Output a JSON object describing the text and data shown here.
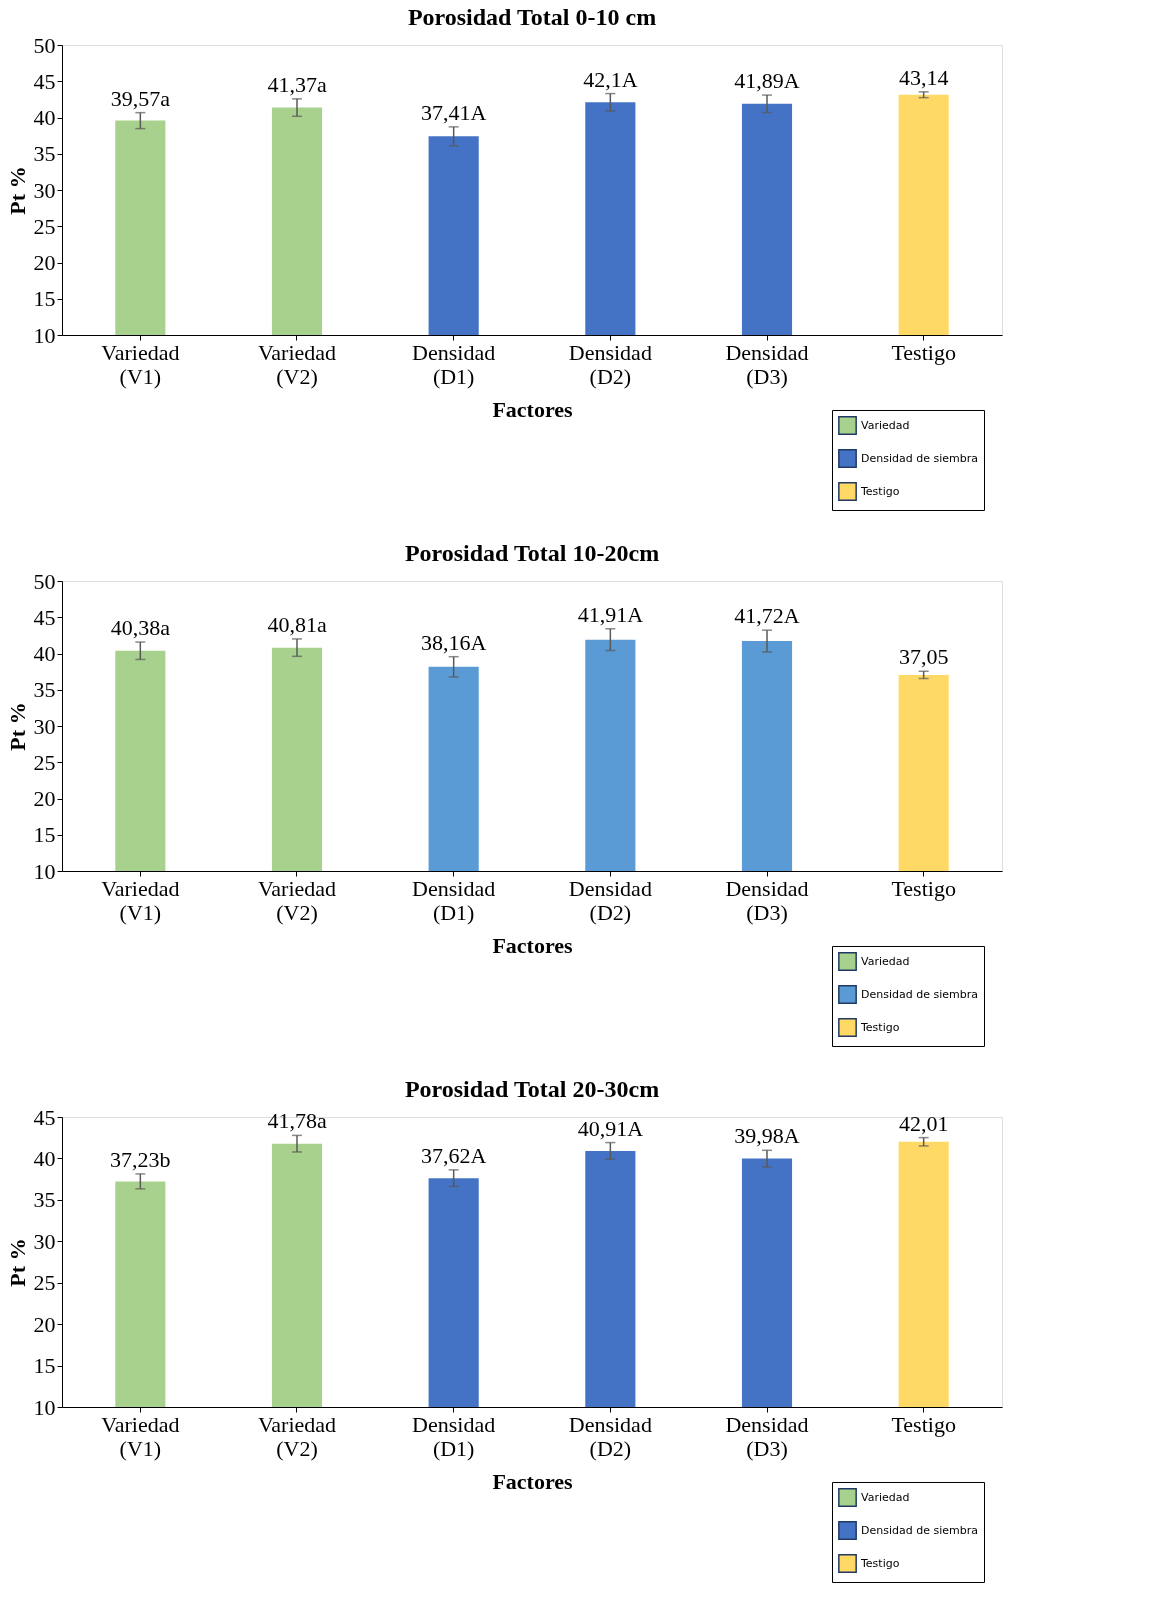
{
  "chart_data": [
    {
      "type": "bar",
      "title": "Porosidad Total   0-10 cm",
      "xlabel": "Factores",
      "ylabel": "Pt %",
      "categories": [
        "Variedad\n(V1)",
        "Variedad\n(V2)",
        "Densidad\n(D1)",
        "Densidad\n(D2)",
        "Densidad\n(D3)",
        "Testigo"
      ],
      "ylim": [
        10,
        50
      ],
      "yticks": [
        10,
        15,
        20,
        25,
        30,
        35,
        40,
        45,
        50
      ],
      "grid": false,
      "legend": "bottom right",
      "series": [
        {
          "name": "Variedad",
          "color": "#a9d18e",
          "values": [
            39.57,
            41.37,
            null,
            null,
            null,
            null
          ],
          "errors": [
            1.1,
            1.2,
            null,
            null,
            null,
            null
          ],
          "value_labels": [
            "39,57a",
            "41,37a",
            null,
            null,
            null,
            null
          ]
        },
        {
          "name": "Densidad de siembra",
          "color": "#4472c4",
          "values": [
            null,
            null,
            37.41,
            42.1,
            41.89,
            null
          ],
          "errors": [
            null,
            null,
            1.3,
            1.2,
            1.2,
            null
          ],
          "value_labels": [
            null,
            null,
            "37,41A",
            "42,1A",
            "41,89A",
            null
          ]
        },
        {
          "name": "Testigo",
          "color": "#ffd966",
          "values": [
            null,
            null,
            null,
            null,
            null,
            43.14
          ],
          "errors": [
            null,
            null,
            null,
            null,
            null,
            0.4
          ],
          "value_labels": [
            null,
            null,
            null,
            null,
            null,
            "43,14"
          ]
        }
      ]
    },
    {
      "type": "bar",
      "title": "Porosidad Total   10-20cm",
      "xlabel": "Factores",
      "ylabel": "Pt %",
      "categories": [
        "Variedad\n(V1)",
        "Variedad\n(V2)",
        "Densidad\n(D1)",
        "Densidad\n(D2)",
        "Densidad\n(D3)",
        "Testigo"
      ],
      "ylim": [
        10,
        50
      ],
      "yticks": [
        10,
        15,
        20,
        25,
        30,
        35,
        40,
        45,
        50
      ],
      "grid": false,
      "legend": "bottom right",
      "series": [
        {
          "name": "Variedad",
          "color": "#a9d18e",
          "values": [
            40.38,
            40.81,
            null,
            null,
            null,
            null
          ],
          "errors": [
            1.2,
            1.2,
            null,
            null,
            null,
            null
          ],
          "value_labels": [
            "40,38a",
            "40,81a",
            null,
            null,
            null,
            null
          ]
        },
        {
          "name": "Densidad de siembra",
          "color": "#5b9bd5",
          "values": [
            null,
            null,
            38.16,
            41.91,
            41.72,
            null
          ],
          "errors": [
            null,
            null,
            1.4,
            1.5,
            1.5,
            null
          ],
          "value_labels": [
            null,
            null,
            "38,16A",
            "41,91A",
            "41,72A",
            null
          ]
        },
        {
          "name": "Testigo",
          "color": "#ffd966",
          "values": [
            null,
            null,
            null,
            null,
            null,
            37.05
          ],
          "errors": [
            null,
            null,
            null,
            null,
            null,
            0.5
          ],
          "value_labels": [
            null,
            null,
            null,
            null,
            null,
            "37,05"
          ]
        }
      ]
    },
    {
      "type": "bar",
      "title": "Porosidad Total  20-30cm",
      "xlabel": "Factores",
      "ylabel": "Pt %",
      "categories": [
        "Variedad\n(V1)",
        "Variedad\n(V2)",
        "Densidad\n(D1)",
        "Densidad\n(D2)",
        "Densidad\n(D3)",
        "Testigo"
      ],
      "ylim": [
        10,
        45
      ],
      "yticks": [
        10,
        15,
        20,
        25,
        30,
        35,
        40,
        45
      ],
      "grid": false,
      "legend": "bottom right",
      "series": [
        {
          "name": "Variedad",
          "color": "#a9d18e",
          "values": [
            37.23,
            41.78,
            null,
            null,
            null,
            null
          ],
          "errors": [
            0.9,
            1.0,
            null,
            null,
            null,
            null
          ],
          "value_labels": [
            "37,23b",
            "41,78a",
            null,
            null,
            null,
            null
          ]
        },
        {
          "name": "Densidad de siembra",
          "color": "#4472c4",
          "values": [
            null,
            null,
            37.62,
            40.91,
            39.98,
            null
          ],
          "errors": [
            null,
            null,
            1.0,
            1.0,
            1.0,
            null
          ],
          "value_labels": [
            null,
            null,
            "37,62A",
            "40,91A",
            "39,98A",
            null
          ]
        },
        {
          "name": "Testigo",
          "color": "#ffd966",
          "values": [
            null,
            null,
            null,
            null,
            null,
            42.01
          ],
          "errors": [
            null,
            null,
            null,
            null,
            null,
            0.5
          ],
          "value_labels": [
            null,
            null,
            null,
            null,
            null,
            "42,01"
          ]
        }
      ]
    }
  ]
}
